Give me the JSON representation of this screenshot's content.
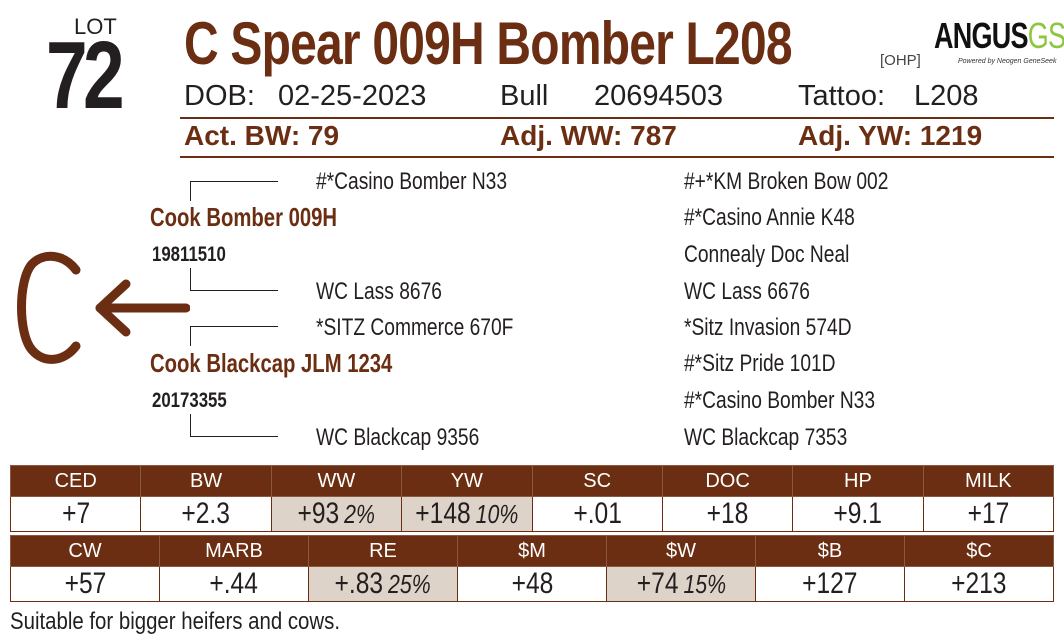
{
  "lot": {
    "label": "LOT",
    "number": "72"
  },
  "animal": {
    "name": "C Spear 009H Bomber L208",
    "tag": "[OHP]",
    "dob_label": "DOB:",
    "dob": "02-25-2023",
    "sex": "Bull",
    "reg_number": "20694503",
    "tattoo_label": "Tattoo:",
    "tattoo": "L208"
  },
  "logo": {
    "main": "ANGUS",
    "accent": "GS",
    "sub": "Powered by Neogen GeneSeek"
  },
  "weights": {
    "act_bw": "Act. BW: 79",
    "adj_ww": "Adj. WW: 787",
    "adj_yw": "Adj. YW: 1219"
  },
  "grade_letter": "C",
  "pedigree": {
    "sire": {
      "name": "Cook Bomber 009H",
      "reg": "19811510"
    },
    "dam": {
      "name": "Cook Blackcap JLM 1234",
      "reg": "20173355"
    },
    "sire_sire": "#*Casino Bomber N33",
    "sire_dam": "WC Lass 8676",
    "dam_sire": "*SITZ Commerce 670F",
    "dam_dam": "WC Blackcap 9356",
    "third_gen": [
      "#+*KM Broken Bow 002",
      "#*Casino Annie K48",
      "Connealy Doc Neal",
      "WC Lass 6676",
      "*Sitz Invasion 574D",
      "#*Sitz Pride 101D",
      "#*Casino Bomber N33",
      "WC Blackcap 7353"
    ]
  },
  "epd_row1": {
    "headers": [
      "CED",
      "BW",
      "WW",
      "YW",
      "SC",
      "DOC",
      "HP",
      "MILK"
    ],
    "values": [
      "+7",
      "+2.3",
      "+93",
      "+148",
      "+.01",
      "+18",
      "+9.1",
      "+17"
    ],
    "pcts": [
      "",
      "",
      "2%",
      "10%",
      "",
      "",
      "",
      ""
    ]
  },
  "epd_row2": {
    "headers": [
      "CW",
      "MARB",
      "RE",
      "$M",
      "$W",
      "$B",
      "$C"
    ],
    "values": [
      "+57",
      "+.44",
      "+.83",
      "+48",
      "+74",
      "+127",
      "+213"
    ],
    "pcts": [
      "",
      "",
      "25%",
      "",
      "15%",
      "",
      ""
    ]
  },
  "note": "Suitable for bigger heifers and cows.",
  "colors": {
    "brand_brown": "#6b2e12",
    "shade": "#ddd3c8",
    "logo_green": "#8dc63f"
  }
}
